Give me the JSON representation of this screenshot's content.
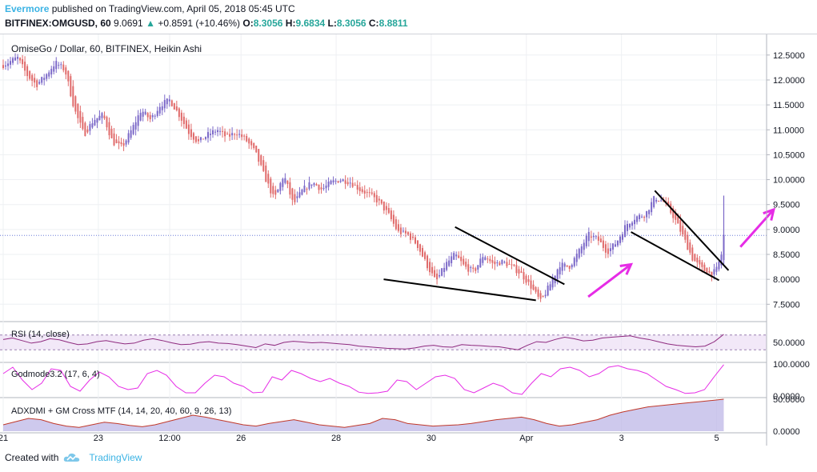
{
  "header": {
    "author": "Evermore",
    "published_text": " published on TradingView.com, April 05, 2018 05:45 UTC",
    "symbol": "BITFINEX:OMGUSD, 60",
    "last": "9.0691",
    "change": "+0.8591 (+10.46%)",
    "o_label": "O:",
    "o_value": "8.3056",
    "h_label": "H:",
    "h_value": "9.6834",
    "l_label": "L:",
    "l_value": "8.3056",
    "c_label": "C:",
    "c_value": "8.8811"
  },
  "footer": {
    "created_with": "Created with",
    "brand": "TradingView"
  },
  "colors": {
    "up": "#7b68c8",
    "down": "#e06a6a",
    "rsi": "#8e2a7f",
    "rsi_band": "#e9d9f3",
    "magenta": "#e62ce6",
    "trendline": "#000000",
    "grid": "#eef0f3",
    "axis_text": "#131722"
  },
  "chart_data": [
    {
      "type": "candlestick",
      "title": "OmiseGo / Dollar, 60, BITFINEX, Heikin Ashi",
      "ylim": [
        7.2,
        12.85
      ],
      "y_ticks": [
        "12.5000",
        "12.0000",
        "11.5000",
        "11.0000",
        "10.5000",
        "10.0000",
        "9.5000",
        "9.0000",
        "8.5000",
        "8.0000",
        "7.5000"
      ],
      "x_ticks": [
        "21",
        "23",
        "12:00",
        "26",
        "28",
        "30",
        "Apr",
        "3",
        "5"
      ],
      "x_range_days": [
        0,
        16
      ],
      "x_tick_days": [
        0,
        2,
        3.5,
        5,
        7,
        9,
        11,
        13,
        15
      ],
      "last_price": 8.8811,
      "price_path": [
        [
          0.0,
          12.3
        ],
        [
          0.3,
          12.45
        ],
        [
          0.5,
          12.1
        ],
        [
          0.7,
          11.9
        ],
        [
          0.9,
          12.1
        ],
        [
          1.1,
          12.35
        ],
        [
          1.3,
          12.2
        ],
        [
          1.5,
          11.4
        ],
        [
          1.7,
          10.9
        ],
        [
          1.9,
          11.2
        ],
        [
          2.1,
          11.3
        ],
        [
          2.3,
          10.75
        ],
        [
          2.5,
          10.65
        ],
        [
          2.7,
          11.0
        ],
        [
          2.9,
          11.4
        ],
        [
          3.1,
          11.2
        ],
        [
          3.3,
          11.5
        ],
        [
          3.5,
          11.6
        ],
        [
          3.7,
          11.3
        ],
        [
          3.9,
          10.95
        ],
        [
          4.1,
          10.75
        ],
        [
          4.3,
          10.9
        ],
        [
          4.5,
          11.0
        ],
        [
          4.7,
          10.85
        ],
        [
          4.9,
          10.95
        ],
        [
          5.1,
          10.8
        ],
        [
          5.3,
          10.55
        ],
        [
          5.5,
          10.05
        ],
        [
          5.7,
          9.6
        ],
        [
          5.9,
          10.1
        ],
        [
          6.1,
          9.5
        ],
        [
          6.3,
          9.8
        ],
        [
          6.5,
          9.95
        ],
        [
          6.7,
          9.8
        ],
        [
          6.9,
          9.95
        ],
        [
          7.1,
          10.0
        ],
        [
          7.3,
          9.95
        ],
        [
          7.5,
          9.8
        ],
        [
          7.7,
          9.7
        ],
        [
          7.9,
          9.55
        ],
        [
          8.1,
          9.3
        ],
        [
          8.3,
          8.95
        ],
        [
          8.5,
          8.9
        ],
        [
          8.7,
          8.7
        ],
        [
          8.9,
          8.3
        ],
        [
          9.1,
          7.95
        ],
        [
          9.3,
          8.3
        ],
        [
          9.5,
          8.5
        ],
        [
          9.7,
          8.25
        ],
        [
          9.9,
          8.15
        ],
        [
          10.1,
          8.5
        ],
        [
          10.3,
          8.3
        ],
        [
          10.5,
          8.35
        ],
        [
          10.7,
          8.25
        ],
        [
          10.9,
          8.1
        ],
        [
          11.1,
          7.85
        ],
        [
          11.3,
          7.55
        ],
        [
          11.5,
          7.9
        ],
        [
          11.7,
          8.3
        ],
        [
          11.9,
          8.25
        ],
        [
          12.1,
          8.55
        ],
        [
          12.3,
          8.9
        ],
        [
          12.5,
          8.8
        ],
        [
          12.7,
          8.55
        ],
        [
          12.9,
          8.75
        ],
        [
          13.1,
          9.1
        ],
        [
          13.3,
          9.25
        ],
        [
          13.5,
          9.3
        ],
        [
          13.7,
          9.65
        ],
        [
          13.9,
          9.55
        ],
        [
          14.1,
          9.25
        ],
        [
          14.3,
          8.85
        ],
        [
          14.5,
          8.4
        ],
        [
          14.7,
          8.2
        ],
        [
          14.9,
          8.1
        ],
        [
          15.0,
          8.2
        ],
        [
          15.1,
          8.5
        ],
        [
          15.15,
          8.88
        ]
      ],
      "trendlines": [
        {
          "from": [
            8.0,
            8.0
          ],
          "to": [
            11.2,
            7.58
          ]
        },
        {
          "from": [
            9.5,
            9.05
          ],
          "to": [
            11.8,
            7.9
          ]
        },
        {
          "from": [
            13.2,
            8.95
          ],
          "to": [
            15.05,
            7.98
          ]
        },
        {
          "from": [
            13.7,
            9.78
          ],
          "to": [
            15.25,
            8.18
          ]
        }
      ],
      "arrows": [
        {
          "from": [
            12.3,
            7.65
          ],
          "to": [
            13.2,
            8.3
          ]
        },
        {
          "from": [
            15.5,
            8.65
          ],
          "to": [
            16.2,
            9.4
          ]
        }
      ]
    },
    {
      "type": "line",
      "title": "RSI (14, close)",
      "y_ticks": [
        "50.0000"
      ],
      "x_range_days": [
        0,
        16
      ],
      "band": [
        30,
        70
      ],
      "values": [
        58,
        62,
        55,
        48,
        52,
        60,
        57,
        50,
        44,
        46,
        52,
        55,
        50,
        46,
        48,
        56,
        60,
        55,
        49,
        44,
        45,
        50,
        52,
        48,
        47,
        44,
        40,
        36,
        46,
        42,
        50,
        53,
        51,
        49,
        50,
        48,
        46,
        44,
        40,
        38,
        36,
        34,
        33,
        32,
        35,
        40,
        42,
        38,
        37,
        44,
        42,
        41,
        39,
        38,
        34,
        30,
        42,
        52,
        50,
        58,
        64,
        60,
        54,
        56,
        62,
        64,
        66,
        68,
        62,
        58,
        52,
        46,
        42,
        40,
        38,
        40,
        52,
        72
      ]
    },
    {
      "type": "line",
      "title": "Godmode3.2 (17, 6, 4)",
      "y_ticks": [
        "100.0000",
        "0.0000"
      ],
      "x_range_days": [
        0,
        16
      ],
      "values": [
        70,
        90,
        50,
        20,
        40,
        85,
        80,
        30,
        15,
        50,
        75,
        60,
        30,
        20,
        25,
        70,
        80,
        65,
        30,
        10,
        10,
        40,
        65,
        60,
        40,
        30,
        10,
        12,
        60,
        50,
        80,
        70,
        55,
        45,
        55,
        40,
        30,
        12,
        8,
        10,
        15,
        50,
        45,
        20,
        40,
        60,
        65,
        55,
        20,
        10,
        25,
        40,
        30,
        10,
        5,
        40,
        70,
        60,
        85,
        90,
        80,
        60,
        70,
        90,
        95,
        85,
        80,
        70,
        50,
        30,
        20,
        8,
        10,
        20,
        60,
        98
      ]
    },
    {
      "type": "area",
      "title": "ADXDMI + GM Cross MTF (14, 14, 20, 40, 60, 9, 26, 13)",
      "y_ticks": [
        "50.0000",
        "0.0000"
      ],
      "x_range_days": [
        0,
        16
      ],
      "values": [
        10,
        15,
        20,
        18,
        12,
        8,
        6,
        10,
        14,
        12,
        9,
        7,
        10,
        15,
        20,
        25,
        22,
        18,
        14,
        10,
        8,
        12,
        15,
        18,
        14,
        10,
        8,
        6,
        9,
        12,
        20,
        18,
        12,
        10,
        8,
        9,
        10,
        12,
        15,
        18,
        20,
        22,
        18,
        12,
        8,
        10,
        14,
        18,
        25,
        30,
        34,
        38,
        40,
        42,
        44,
        46,
        48,
        50
      ]
    }
  ]
}
